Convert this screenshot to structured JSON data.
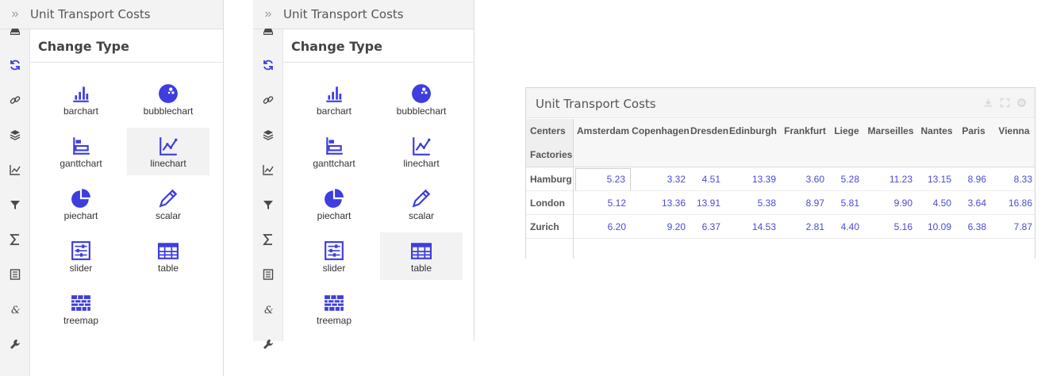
{
  "panels": [
    {
      "header_title": "Unit Transport Costs",
      "expand_glyph": "»",
      "section_title": "Change Type",
      "selected": "linechart"
    },
    {
      "header_title": "Unit Transport Costs",
      "expand_glyph": "»",
      "section_title": "Change Type",
      "selected": "table"
    }
  ],
  "rail_icons": [
    "inbox-icon",
    "refresh-icon",
    "link-icon",
    "layers-icon",
    "line-graph-icon",
    "filter-icon",
    "sigma-icon",
    "list-icon",
    "ampersand-icon",
    "wrench-icon"
  ],
  "chart_types": [
    {
      "id": "barchart",
      "label": "barchart",
      "icon": "barchart-icon"
    },
    {
      "id": "bubblechart",
      "label": "bubblechart",
      "icon": "bubblechart-icon"
    },
    {
      "id": "ganttchart",
      "label": "ganttchart",
      "icon": "ganttchart-icon"
    },
    {
      "id": "linechart",
      "label": "linechart",
      "icon": "linechart-icon"
    },
    {
      "id": "piechart",
      "label": "piechart",
      "icon": "piechart-icon"
    },
    {
      "id": "scalar",
      "label": "scalar",
      "icon": "pencil-icon"
    },
    {
      "id": "slider",
      "label": "slider",
      "icon": "slider-icon"
    },
    {
      "id": "table",
      "label": "table",
      "icon": "table-icon"
    },
    {
      "id": "treemap",
      "label": "treemap",
      "icon": "treemap-icon"
    }
  ],
  "colors": {
    "accent": "#3d3de0",
    "rail_icon": "#4a4a4a",
    "tool_icon": "#d8d8d8"
  },
  "table_window": {
    "title": "Unit Transport Costs",
    "tools": [
      "download-icon",
      "fullscreen-icon",
      "settings-icon"
    ],
    "corner_top": "Centers",
    "corner_bottom": "Factories",
    "columns": [
      "Amsterdam",
      "Copenhagen",
      "Dresden",
      "Edinburgh",
      "Frankfurt",
      "Liege",
      "Marseilles",
      "Nantes",
      "Paris",
      "Vienna"
    ],
    "rows": [
      {
        "label": "Hamburg",
        "values": [
          "5.23",
          "3.32",
          "4.51",
          "13.39",
          "3.60",
          "5.28",
          "11.23",
          "13.15",
          "8.96",
          "8.33"
        ]
      },
      {
        "label": "London",
        "values": [
          "5.12",
          "13.36",
          "13.91",
          "5.38",
          "8.97",
          "5.81",
          "9.90",
          "4.50",
          "3.64",
          "16.86"
        ]
      },
      {
        "label": "Zurich",
        "values": [
          "6.20",
          "9.20",
          "6.37",
          "14.53",
          "2.81",
          "4.40",
          "5.16",
          "10.09",
          "6.38",
          "7.87"
        ]
      }
    ]
  }
}
